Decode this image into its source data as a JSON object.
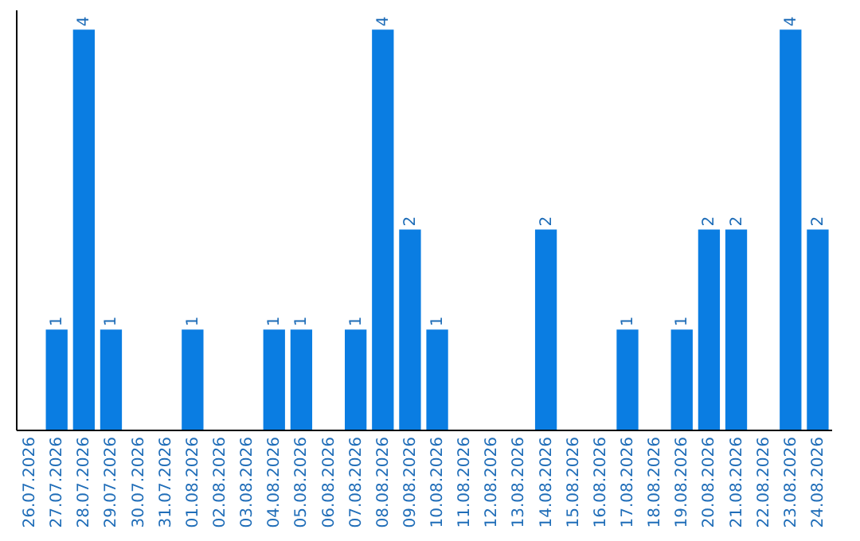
{
  "chart_data": {
    "type": "bar",
    "categories": [
      "26.07.2026",
      "27.07.2026",
      "28.07.2026",
      "29.07.2026",
      "30.07.2026",
      "31.07.2026",
      "01.08.2026",
      "02.08.2026",
      "03.08.2026",
      "04.08.2026",
      "05.08.2026",
      "06.08.2026",
      "07.08.2026",
      "08.08.2026",
      "09.08.2026",
      "10.08.2026",
      "11.08.2026",
      "12.08.2026",
      "13.08.2026",
      "14.08.2026",
      "15.08.2026",
      "16.08.2026",
      "17.08.2026",
      "18.08.2026",
      "19.08.2026",
      "20.08.2026",
      "21.08.2026",
      "22.08.2026",
      "23.08.2026",
      "24.08.2026"
    ],
    "values": [
      null,
      1,
      4,
      1,
      null,
      null,
      1,
      null,
      null,
      1,
      1,
      null,
      1,
      4,
      2,
      1,
      null,
      null,
      null,
      2,
      null,
      null,
      1,
      null,
      1,
      2,
      2,
      null,
      4,
      2
    ],
    "color": "#0a7de2",
    "ylim": [
      0,
      4.2
    ],
    "data_labels": true,
    "tick_labels": "x"
  }
}
